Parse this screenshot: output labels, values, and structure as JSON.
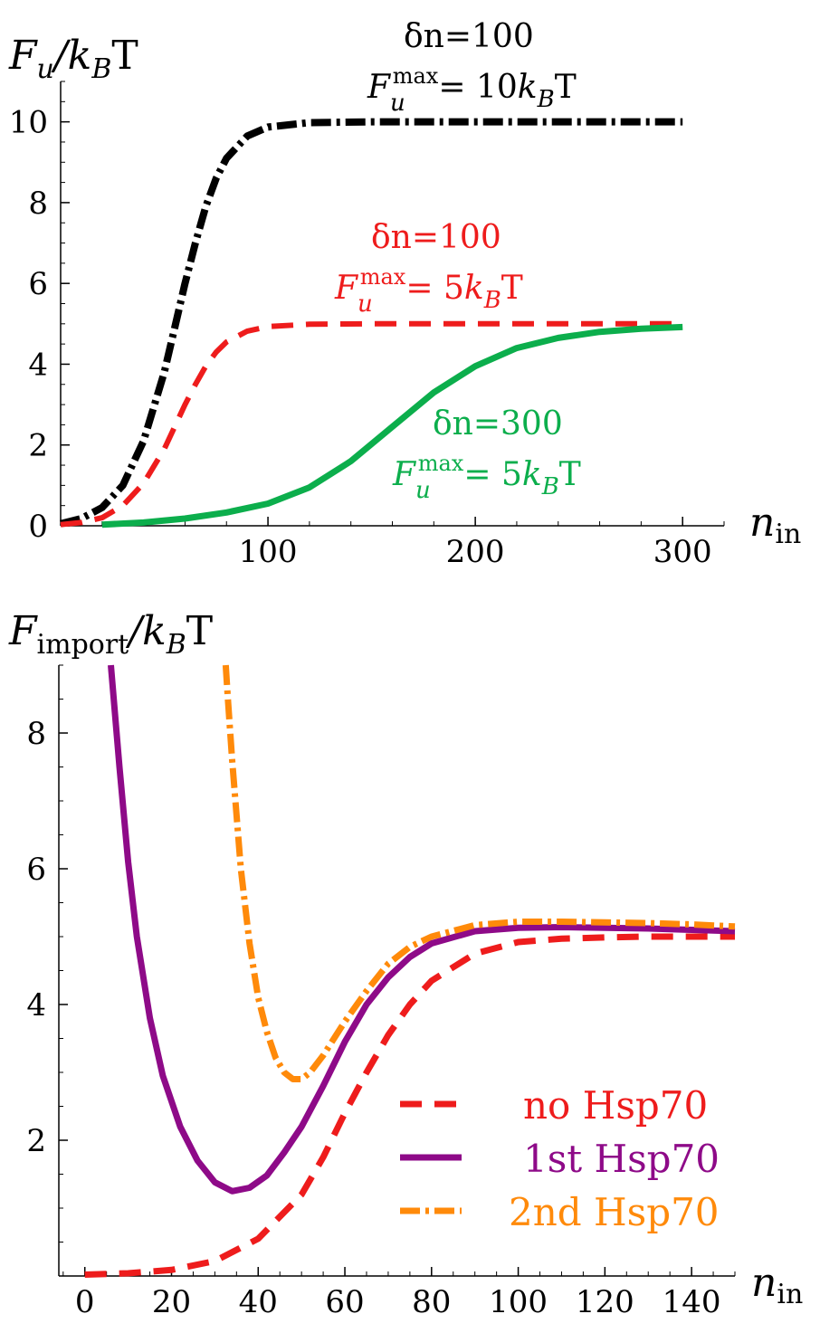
{
  "chart_data": [
    {
      "type": "line",
      "ylabel": {
        "base": "F",
        "sub": "u",
        "tail": "/k",
        "tail_sub": "B",
        "unit": "T"
      },
      "xlabel": {
        "base": "n",
        "sub": "in"
      },
      "xlim": [
        0,
        320
      ],
      "ylim": [
        0,
        11
      ],
      "xticks": [
        100,
        200,
        300
      ],
      "yticks": [
        0,
        2,
        4,
        6,
        8,
        10
      ],
      "series": [
        {
          "name": "δn=100, Fu max = 10 kBT",
          "color": "#000000",
          "style": "dashdot",
          "label_line1": "δn=100",
          "label_line2": {
            "base": "F",
            "sub": "u",
            "sup": "max",
            "rest": "= 10",
            "k": "k",
            "k_sub": "B",
            "unit": "T"
          },
          "x": [
            0,
            10,
            20,
            30,
            40,
            50,
            55,
            60,
            65,
            70,
            75,
            80,
            90,
            100,
            120,
            150,
            200,
            250,
            300
          ],
          "y": [
            0.05,
            0.18,
            0.45,
            1.0,
            2.1,
            3.8,
            4.9,
            6.0,
            7.0,
            7.9,
            8.6,
            9.1,
            9.65,
            9.87,
            9.98,
            10.0,
            10.0,
            10.0,
            10.0
          ]
        },
        {
          "name": "δn=100, Fu max = 5 kBT",
          "color": "#ee1c1c",
          "style": "dashed",
          "label_line1": "δn=100",
          "label_line2": {
            "base": "F",
            "sub": "u",
            "sup": "max",
            "rest": "= 5",
            "k": "k",
            "k_sub": "B",
            "unit": "T"
          },
          "x": [
            0,
            10,
            20,
            30,
            40,
            50,
            55,
            60,
            65,
            70,
            75,
            80,
            90,
            100,
            120,
            150,
            200,
            250,
            300
          ],
          "y": [
            0.03,
            0.08,
            0.2,
            0.5,
            1.05,
            1.9,
            2.45,
            3.0,
            3.5,
            3.95,
            4.3,
            4.55,
            4.82,
            4.93,
            4.99,
            5.0,
            5.0,
            5.0,
            5.0
          ]
        },
        {
          "name": "δn=300, Fu max = 5 kBT",
          "color": "#0cae4c",
          "style": "solid",
          "label_line1": "δn=300",
          "label_line2": {
            "base": "F",
            "sub": "u",
            "sup": "max",
            "rest": "= 5",
            "k": "k",
            "k_sub": "B",
            "unit": "T"
          },
          "x": [
            20,
            40,
            60,
            80,
            100,
            120,
            140,
            160,
            180,
            200,
            220,
            240,
            260,
            280,
            300
          ],
          "y": [
            0.03,
            0.08,
            0.18,
            0.33,
            0.55,
            0.95,
            1.6,
            2.45,
            3.3,
            3.95,
            4.4,
            4.65,
            4.8,
            4.88,
            4.92
          ]
        }
      ]
    },
    {
      "type": "line",
      "ylabel": {
        "base": "F",
        "sub": "import",
        "tail": "/k",
        "tail_sub": "B",
        "unit": "T"
      },
      "xlabel": {
        "base": "n",
        "sub": "in"
      },
      "xlim": [
        -6,
        150
      ],
      "ylim": [
        0,
        9
      ],
      "xticks": [
        0,
        20,
        40,
        60,
        80,
        100,
        120,
        140
      ],
      "yticks": [
        2,
        4,
        6,
        8
      ],
      "legend_position": "lower-right",
      "series": [
        {
          "name": "no Hsp70",
          "color": "#ee1c1c",
          "style": "dashed",
          "x": [
            0,
            10,
            20,
            30,
            40,
            50,
            55,
            60,
            65,
            70,
            75,
            80,
            90,
            100,
            110,
            120,
            130,
            140,
            150
          ],
          "y": [
            0.02,
            0.04,
            0.09,
            0.22,
            0.55,
            1.2,
            1.75,
            2.4,
            3.0,
            3.55,
            4.0,
            4.35,
            4.75,
            4.92,
            4.97,
            4.99,
            5.0,
            5.0,
            5.0
          ]
        },
        {
          "name": "1st Hsp70",
          "color": "#8e0a88",
          "style": "solid",
          "x": [
            6,
            8,
            10,
            12,
            15,
            18,
            22,
            26,
            30,
            34,
            38,
            42,
            46,
            50,
            55,
            60,
            65,
            70,
            75,
            80,
            90,
            100,
            110,
            120,
            130,
            140,
            150
          ],
          "y": [
            9.0,
            7.5,
            6.1,
            5.0,
            3.8,
            2.95,
            2.2,
            1.7,
            1.38,
            1.25,
            1.3,
            1.48,
            1.82,
            2.2,
            2.8,
            3.45,
            4.0,
            4.4,
            4.7,
            4.9,
            5.08,
            5.13,
            5.14,
            5.13,
            5.12,
            5.1,
            5.08
          ]
        },
        {
          "name": "2nd Hsp70",
          "color": "#ff8a0a",
          "style": "dashdot",
          "x": [
            32.5,
            33,
            34,
            35,
            36,
            38,
            40,
            42,
            44,
            46,
            48,
            50,
            52,
            55,
            60,
            65,
            70,
            75,
            80,
            90,
            100,
            110,
            120,
            130,
            140,
            150
          ],
          "y": [
            9.0,
            8.5,
            7.6,
            6.8,
            6.0,
            4.9,
            4.1,
            3.6,
            3.22,
            3.0,
            2.9,
            2.9,
            3.0,
            3.25,
            3.75,
            4.2,
            4.6,
            4.85,
            5.0,
            5.17,
            5.22,
            5.22,
            5.21,
            5.2,
            5.18,
            5.15
          ]
        }
      ]
    }
  ]
}
